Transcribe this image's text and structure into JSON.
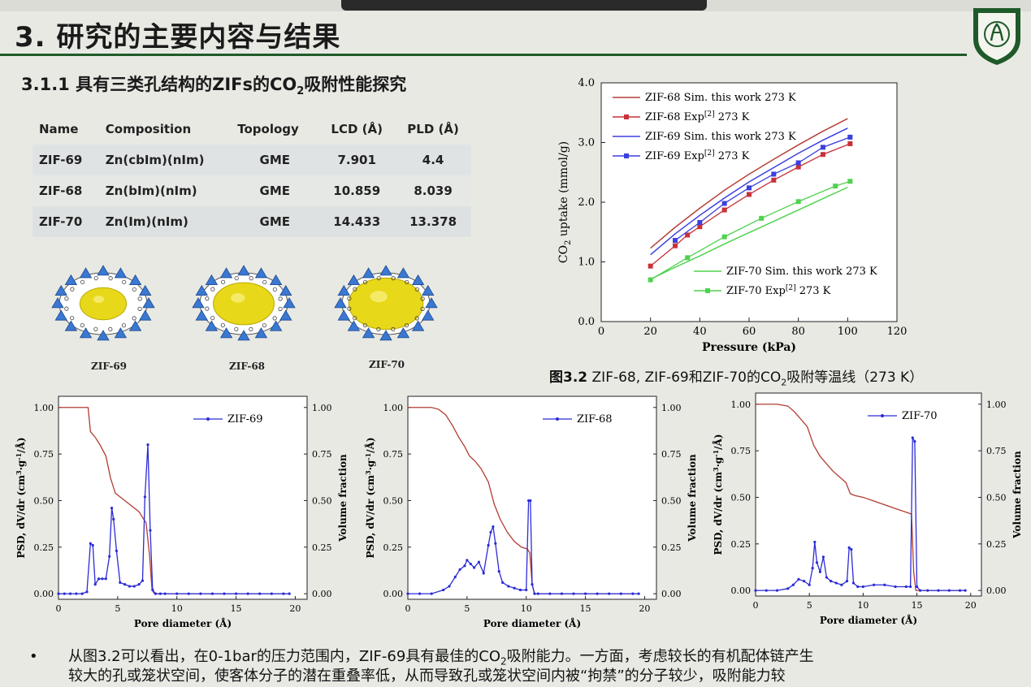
{
  "slide": {
    "title": "3. 研究的主要内容与结果",
    "subtitle_pre": "3.1.1 具有三类孔结构的ZIFs的CO",
    "subtitle_sub": "2",
    "subtitle_post": "吸附性能探究"
  },
  "table": {
    "headers": [
      "Name",
      "Composition",
      "Topology",
      "LCD (Å)",
      "PLD (Å)"
    ],
    "rows": [
      [
        "ZIF-69",
        "Zn(cbIm)(nIm)",
        "GME",
        "7.901",
        "4.4"
      ],
      [
        "ZIF-68",
        "Zn(bIm)(nIm)",
        "GME",
        "10.859",
        "8.039"
      ],
      [
        "ZIF-70",
        "Zn(Im)(nIm)",
        "GME",
        "14.433",
        "13.378"
      ]
    ]
  },
  "cages": [
    {
      "label": "ZIF-69",
      "fill_fraction": 0.55
    },
    {
      "label": "ZIF-68",
      "fill_fraction": 0.72
    },
    {
      "label": "ZIF-70",
      "fill_fraction": 0.88
    }
  ],
  "colors": {
    "accent_green": "#1f5a2a",
    "zif68_sim": "#b5413a",
    "zif68_exp": "#c8313a",
    "zif69": "#3b3fe0",
    "zif70": "#4fd24f",
    "psd": "#2b2bd6",
    "volume": "#b23c33",
    "cage_yellow": "#e8d81a",
    "cage_blue": "#3a78d2"
  },
  "isotherm": {
    "type": "line",
    "ylabel_pre": "CO",
    "ylabel_sub": "2",
    "ylabel_post": " uptake (mmol/g)",
    "xlabel": "Pressure (kPa)",
    "xlim": [
      0,
      120
    ],
    "ylim": [
      0,
      4
    ],
    "xticks": [
      "0",
      "20",
      "40",
      "60",
      "80",
      "100",
      "120"
    ],
    "yticks": [
      "0.0",
      "1.0",
      "2.0",
      "3.0",
      "4.0"
    ],
    "series": [
      {
        "name": "ZIF-68 Sim. this work 273 K",
        "kind": "sim",
        "color": "#b5413a",
        "x": [
          20,
          30,
          40,
          50,
          60,
          70,
          80,
          90,
          100
        ],
        "y": [
          1.23,
          1.58,
          1.9,
          2.2,
          2.47,
          2.72,
          2.96,
          3.19,
          3.4
        ]
      },
      {
        "name_pre": "ZIF-68 Exp",
        "name_sup": "[2]",
        "name_post": " 273 K",
        "kind": "exp",
        "color": "#c8313a",
        "x": [
          20,
          30,
          35,
          40,
          50,
          60,
          70,
          80,
          90,
          101
        ],
        "y": [
          0.93,
          1.27,
          1.45,
          1.59,
          1.87,
          2.13,
          2.37,
          2.59,
          2.8,
          2.98
        ]
      },
      {
        "name": "ZIF-69 Sim. this work 273 K",
        "kind": "sim",
        "color": "#3b3fe0",
        "x": [
          20,
          30,
          40,
          50,
          60,
          70,
          80,
          90,
          100
        ],
        "y": [
          1.12,
          1.47,
          1.78,
          2.07,
          2.34,
          2.58,
          2.82,
          3.04,
          3.24
        ]
      },
      {
        "name_pre": "ZIF-69 Exp",
        "name_sup": "[2]",
        "name_post": " 273 K",
        "kind": "exp",
        "color": "#3b3fe0",
        "x": [
          30,
          40,
          50,
          60,
          70,
          80,
          90,
          101
        ],
        "y": [
          1.36,
          1.66,
          1.98,
          2.24,
          2.47,
          2.66,
          2.92,
          3.09
        ]
      },
      {
        "name": "ZIF-70 Sim. this work 273 K",
        "kind": "sim",
        "color": "#4fd24f",
        "x": [
          20,
          30,
          40,
          50,
          60,
          70,
          80,
          90,
          100
        ],
        "y": [
          0.71,
          0.91,
          1.1,
          1.3,
          1.49,
          1.68,
          1.87,
          2.06,
          2.25
        ]
      },
      {
        "name_pre": "ZIF-70 Exp",
        "name_sup": "[2]",
        "name_post": "  273 K",
        "kind": "exp",
        "color": "#4fd24f",
        "x": [
          20,
          35,
          50,
          65,
          80,
          95,
          101
        ],
        "y": [
          0.7,
          1.07,
          1.42,
          1.73,
          2.01,
          2.27,
          2.35
        ]
      }
    ]
  },
  "caption": {
    "fig": "图3.2",
    "text_pre": "  ZIF-68, ZIF-69和ZIF-70的CO",
    "text_sub": "2",
    "text_post": "吸附等温线（273 K）"
  },
  "psd_common": {
    "xlabel": "Pore diameter (Å)",
    "ylabel_left_pre": "PSD, dV/dr (cm",
    "ylabel_left_sup1": "3",
    "ylabel_left_mid": "·g",
    "ylabel_left_sup2": "-1",
    "ylabel_left_post": "/Å)",
    "ylabel_right": "Volume fraction",
    "xticks": [
      "0",
      "5",
      "10",
      "15",
      "20"
    ],
    "yticks": [
      "0.00",
      "0.25",
      "0.50",
      "0.75",
      "1.00"
    ],
    "xlim": [
      0,
      21
    ],
    "ylim": [
      -0.03,
      1.06
    ]
  },
  "psd_charts": [
    {
      "type": "line",
      "legend": "ZIF-69",
      "psd": {
        "x": [
          0,
          0.5,
          1,
          1.5,
          2,
          2.4,
          2.7,
          2.9,
          3.1,
          3.4,
          3.7,
          4.0,
          4.3,
          4.5,
          4.65,
          4.9,
          5.2,
          5.6,
          6.0,
          6.4,
          6.8,
          7.1,
          7.3,
          7.55,
          7.75,
          7.95,
          8.2,
          8.6,
          9,
          10,
          11,
          12,
          13,
          14,
          15,
          16,
          17,
          18,
          19,
          19.5
        ],
        "y": [
          0,
          0,
          0,
          0,
          0,
          0.01,
          0.27,
          0.26,
          0.05,
          0.08,
          0.08,
          0.08,
          0.2,
          0.46,
          0.4,
          0.23,
          0.06,
          0.05,
          0.04,
          0.04,
          0.05,
          0.07,
          0.52,
          0.8,
          0.34,
          0.02,
          0,
          0,
          0,
          0,
          0,
          0,
          0,
          0,
          0,
          0,
          0,
          0,
          0,
          0
        ]
      },
      "volume": {
        "x": [
          0,
          2.5,
          2.7,
          3.1,
          3.5,
          4.0,
          4.4,
          4.8,
          5.2,
          6.0,
          6.8,
          7.4,
          7.7,
          7.9,
          8.1,
          19.5
        ],
        "y": [
          1.0,
          1.0,
          0.87,
          0.84,
          0.8,
          0.74,
          0.62,
          0.54,
          0.52,
          0.48,
          0.44,
          0.38,
          0.2,
          0.02,
          0,
          0
        ]
      }
    },
    {
      "type": "line",
      "legend": "ZIF-68",
      "psd": {
        "x": [
          0,
          1,
          2,
          3,
          3.5,
          4,
          4.4,
          4.8,
          5.0,
          5.3,
          5.6,
          6.0,
          6.4,
          6.8,
          7.0,
          7.2,
          7.4,
          7.7,
          8.0,
          8.5,
          9.0,
          9.5,
          10.0,
          10.2,
          10.35,
          10.5,
          10.7,
          11,
          12,
          13,
          14,
          15,
          16,
          17,
          18,
          19,
          19.5
        ],
        "y": [
          0,
          0,
          0,
          0.02,
          0.04,
          0.09,
          0.13,
          0.15,
          0.18,
          0.16,
          0.14,
          0.17,
          0.11,
          0.26,
          0.33,
          0.36,
          0.27,
          0.12,
          0.06,
          0.04,
          0.03,
          0.02,
          0.02,
          0.5,
          0.5,
          0.05,
          0,
          0,
          0,
          0,
          0,
          0,
          0,
          0,
          0,
          0,
          0
        ]
      },
      "volume": {
        "x": [
          0,
          1,
          2,
          2.6,
          3.2,
          3.8,
          4.3,
          4.8,
          5.2,
          5.7,
          6.2,
          6.8,
          7.3,
          7.8,
          8.4,
          9.0,
          9.6,
          10.1,
          10.3,
          10.5,
          10.7,
          19.5
        ],
        "y": [
          1.0,
          1.0,
          1.0,
          0.99,
          0.96,
          0.9,
          0.84,
          0.79,
          0.74,
          0.71,
          0.67,
          0.6,
          0.48,
          0.4,
          0.33,
          0.28,
          0.25,
          0.24,
          0.22,
          0.05,
          0,
          0
        ]
      }
    },
    {
      "type": "line",
      "legend": "ZIF-70",
      "psd": {
        "x": [
          0,
          1,
          2,
          3,
          3.5,
          4,
          4.5,
          5.0,
          5.3,
          5.5,
          5.7,
          6.0,
          6.3,
          6.6,
          7.0,
          7.5,
          8.0,
          8.5,
          8.7,
          8.9,
          9.1,
          9.5,
          10,
          11,
          12,
          13,
          14,
          14.4,
          14.6,
          14.8,
          15.0,
          15.3,
          16,
          17,
          18,
          19,
          19.5
        ],
        "y": [
          0,
          0,
          0,
          0.01,
          0.03,
          0.06,
          0.05,
          0.03,
          0.12,
          0.26,
          0.15,
          0.1,
          0.18,
          0.07,
          0.05,
          0.04,
          0.03,
          0.05,
          0.23,
          0.22,
          0.04,
          0.02,
          0.02,
          0.03,
          0.03,
          0.02,
          0.02,
          0.02,
          0.82,
          0.8,
          0.02,
          0,
          0,
          0,
          0,
          0,
          0
        ]
      },
      "volume": {
        "x": [
          0,
          1,
          2,
          3,
          3.6,
          4.2,
          4.8,
          5.4,
          6.0,
          6.6,
          7.2,
          7.8,
          8.4,
          8.8,
          9.2,
          10,
          11,
          12,
          13,
          14,
          14.5,
          14.7,
          14.9,
          19.5
        ],
        "y": [
          1.0,
          1.0,
          1.0,
          0.99,
          0.96,
          0.92,
          0.88,
          0.78,
          0.72,
          0.68,
          0.64,
          0.61,
          0.58,
          0.52,
          0.51,
          0.5,
          0.48,
          0.46,
          0.44,
          0.42,
          0.41,
          0.1,
          0,
          0
        ]
      }
    }
  ],
  "bullet": {
    "symbol": "•",
    "line1_pre": "从图3.2可以看出，在0-1bar的压力范围内，ZIF-69具有最佳的CO",
    "line1_sub": "2",
    "line1_post": "吸附能力。一方面，考虑较长的有机配体链产生",
    "line2": "较大的孔或笼状空间，使客体分子的潜在重叠率低，从而导致孔或笼状空间内被“拘禁”的分子较少，吸附能力较"
  }
}
